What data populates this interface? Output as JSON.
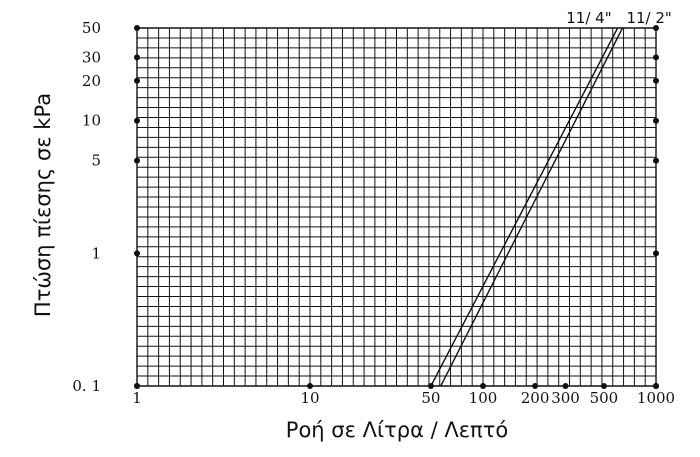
{
  "chart_data": {
    "type": "line",
    "title": "",
    "xlabel": "Ροή σε Λίτρα / Λεπτό",
    "ylabel": "Πτώση πίεσης σε kPa",
    "x_ticks": [
      {
        "value": 1,
        "label": "1"
      },
      {
        "value": 10,
        "label": "10"
      },
      {
        "value": 50,
        "label": "50"
      },
      {
        "value": 100,
        "label": "100"
      },
      {
        "value": 200,
        "label": "200"
      },
      {
        "value": 300,
        "label": "300"
      },
      {
        "value": 500,
        "label": "500"
      },
      {
        "value": 1000,
        "label": "1000"
      }
    ],
    "y_ticks": [
      {
        "value": 0.1,
        "label": "0. 1"
      },
      {
        "value": 1,
        "label": "1"
      },
      {
        "value": 5,
        "label": "5"
      },
      {
        "value": 10,
        "label": "10"
      },
      {
        "value": 20,
        "label": "20"
      },
      {
        "value": 30,
        "label": "30"
      },
      {
        "value": 50,
        "label": "50"
      }
    ],
    "xlim": [
      1,
      1000
    ],
    "ylim": [
      0.1,
      50
    ],
    "grid": true,
    "series": [
      {
        "name": "11/ 4\"",
        "x": [
          50,
          600
        ],
        "y": [
          0.1,
          50
        ]
      },
      {
        "name": "11/ 2\"",
        "x": [
          57,
          640
        ],
        "y": [
          0.1,
          50
        ]
      }
    ]
  }
}
